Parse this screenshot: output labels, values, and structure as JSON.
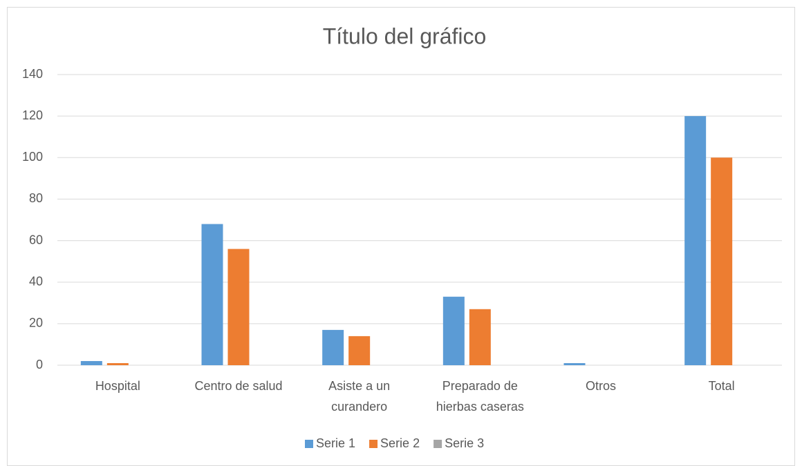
{
  "chart_data": {
    "type": "bar",
    "title": "Título del gráfico",
    "categories": [
      "Hospital",
      "Centro de salud",
      "Asiste a un curandero",
      "Preparado de hierbas caseras",
      "Otros",
      "Total"
    ],
    "series": [
      {
        "name": "Serie 1",
        "color": "#5b9bd5",
        "values": [
          2,
          68,
          17,
          33,
          1,
          120
        ]
      },
      {
        "name": "Serie 2",
        "color": "#ed7d31",
        "values": [
          1,
          56,
          14,
          27,
          0,
          100
        ]
      },
      {
        "name": "Serie 3",
        "color": "#a5a5a5",
        "values": [
          0,
          0,
          0,
          0,
          0,
          0
        ]
      }
    ],
    "ylim": [
      0,
      140
    ],
    "yticks": [
      0,
      20,
      40,
      60,
      80,
      100,
      120,
      140
    ],
    "grid": true,
    "legend": "bottom"
  }
}
